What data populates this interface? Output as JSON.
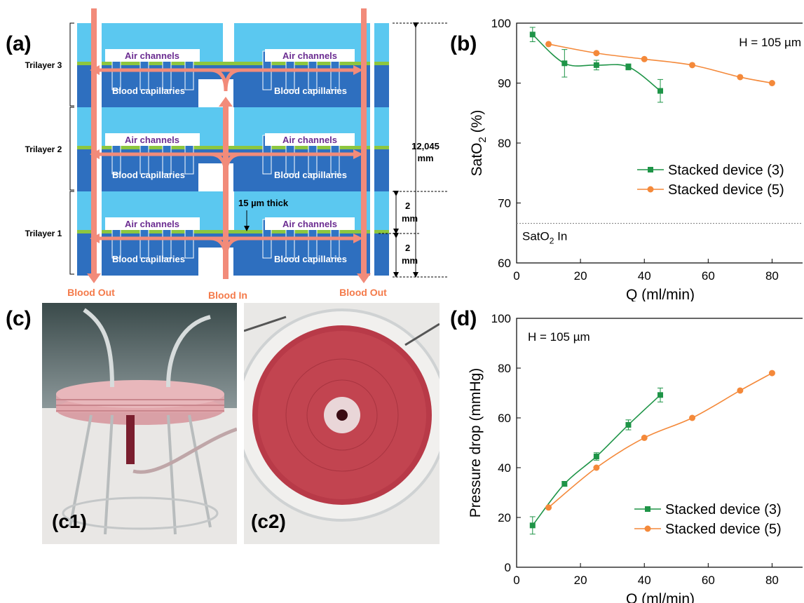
{
  "panels": {
    "a": "(a)",
    "b": "(b)",
    "c": "(c)",
    "d": "(d)",
    "c1": "(c1)",
    "c2": "(c2)"
  },
  "diagram": {
    "trilayers": [
      "Trilayer 3",
      "Trilayer 2",
      "Trilayer 1"
    ],
    "air_label": "Air channels",
    "blood_label": "Blood capillaries",
    "blood_out_left": "Blood Out",
    "blood_in": "Blood In",
    "blood_out_right": "Blood Out",
    "total_height": [
      "12,045",
      "mm"
    ],
    "layer_height": [
      "2",
      "mm"
    ],
    "thickness": "15 µm thick",
    "colors": {
      "air": "#5bc8f0",
      "blood": "#2e6fbf",
      "membrane": "#8dc63f",
      "arrow": "#f28b7a",
      "arrow_text": "#f47a4a",
      "air_text": "#6b2c91"
    }
  },
  "chart_data": [
    {
      "type": "line",
      "panel": "b",
      "annotation": "H = 105 µm",
      "ylabel_main": "SatO",
      "ylabel_sub": "2",
      "ylabel_tail": " (%)",
      "xlabel": "Q (ml/min)",
      "xlim": [
        0,
        90
      ],
      "ylim": [
        60,
        100
      ],
      "xticks": [
        0,
        20,
        40,
        60,
        80
      ],
      "yticks": [
        60,
        70,
        80,
        90,
        100
      ],
      "reference_line": {
        "y": 66.6,
        "label_main": "SatO",
        "label_sub": "2",
        "label_tail": " In"
      },
      "legend_position": "center-right",
      "series": [
        {
          "name": "Stacked device (3)",
          "color": "#1e9447",
          "marker": "square",
          "x": [
            5,
            15,
            25,
            35,
            45
          ],
          "y": [
            98.1,
            93.3,
            93.0,
            92.7,
            88.7
          ],
          "err": [
            1.2,
            2.3,
            0.8,
            0.5,
            1.9
          ]
        },
        {
          "name": "Stacked device (5)",
          "color": "#f4893a",
          "marker": "circle",
          "x": [
            10,
            25,
            40,
            55,
            70,
            80
          ],
          "y": [
            96.5,
            95.0,
            94.0,
            93.0,
            91.0,
            90.0
          ],
          "err": []
        }
      ]
    },
    {
      "type": "line",
      "panel": "d",
      "annotation": "H = 105 µm",
      "ylabel": "Pressure drop (mmHg)",
      "xlabel": "Q (ml/min)",
      "xlim": [
        0,
        90
      ],
      "ylim": [
        0,
        100
      ],
      "xticks": [
        0,
        20,
        40,
        60,
        80
      ],
      "yticks": [
        0,
        20,
        40,
        60,
        80,
        100
      ],
      "legend_position": "bottom-right",
      "series": [
        {
          "name": "Stacked device (3)",
          "color": "#1e9447",
          "marker": "square",
          "x": [
            5,
            15,
            25,
            35,
            45
          ],
          "y": [
            16.8,
            33.5,
            44.5,
            57.2,
            69.2
          ],
          "err": [
            3.5,
            1.0,
            1.5,
            2.0,
            2.8
          ]
        },
        {
          "name": "Stacked device (5)",
          "color": "#f4893a",
          "marker": "circle",
          "x": [
            10,
            25,
            40,
            55,
            70,
            80
          ],
          "y": [
            24.0,
            40.0,
            52.0,
            60.0,
            71.0,
            78.0
          ],
          "err": []
        }
      ]
    }
  ]
}
